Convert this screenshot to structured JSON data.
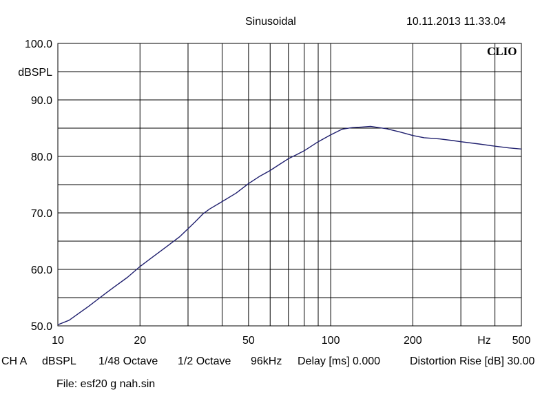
{
  "header": {
    "mode": "Sinusoidal",
    "timestamp": "10.11.2013 11.33.04"
  },
  "logo": "CLIO",
  "footer": {
    "channel": "CH A",
    "unit": "dBSPL",
    "smoothing": "1/48 Octave",
    "resolution": "1/2 Octave",
    "sample_rate": "96kHz",
    "delay": "Delay [ms] 0.000",
    "distortion": "Distortion Rise [dB] 30.00",
    "file": "File: esf20 g nah.sin"
  },
  "chart_data": {
    "type": "line",
    "title": "",
    "xlabel": "Hz",
    "ylabel": "dBSPL",
    "x_scale": "log",
    "xlim": [
      10,
      500
    ],
    "ylim": [
      50,
      100
    ],
    "grid": true,
    "x_tick_labels": [
      "10",
      "20",
      "50",
      "100",
      "200",
      "500"
    ],
    "x_tick_values": [
      10,
      20,
      50,
      100,
      200,
      500
    ],
    "y_tick_labels": [
      "50.0",
      "60.0",
      "70.0",
      "80.0",
      "90.0",
      "100.0"
    ],
    "y_tick_values": [
      50,
      60,
      70,
      80,
      90,
      100
    ],
    "line_color": "#1f1f6e",
    "series": [
      {
        "x": [
          10,
          11,
          12,
          13,
          14,
          15,
          16,
          18,
          20,
          22,
          25,
          28,
          30,
          32,
          34,
          36,
          40,
          45,
          50,
          55,
          60,
          65,
          70,
          75,
          80,
          90,
          100,
          110,
          120,
          130,
          140,
          150,
          160,
          180,
          200,
          220,
          250,
          280,
          300,
          350,
          400,
          450,
          500
        ],
        "y": [
          50.2,
          51.0,
          52.3,
          53.5,
          54.7,
          55.8,
          56.8,
          58.6,
          60.5,
          62.0,
          64.0,
          65.8,
          67.2,
          68.5,
          69.8,
          70.7,
          72.0,
          73.5,
          75.2,
          76.5,
          77.5,
          78.6,
          79.6,
          80.3,
          81.0,
          82.6,
          83.8,
          84.8,
          85.1,
          85.2,
          85.3,
          85.1,
          84.9,
          84.3,
          83.7,
          83.3,
          83.1,
          82.8,
          82.6,
          82.2,
          81.8,
          81.5,
          81.3
        ]
      }
    ]
  }
}
